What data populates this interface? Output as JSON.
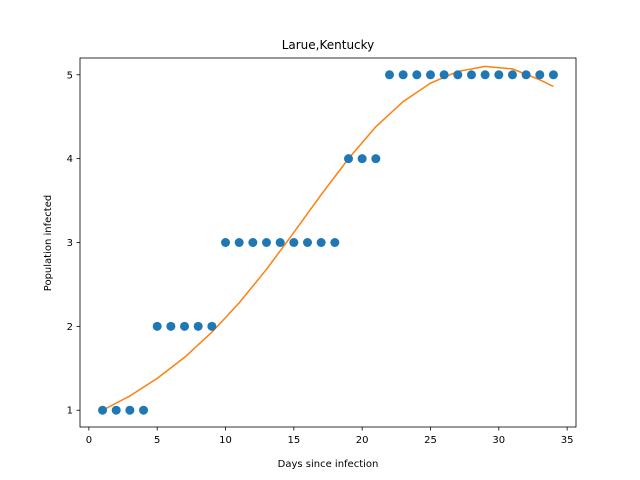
{
  "chart_data": {
    "type": "scatter",
    "title": "Larue,Kentucky",
    "xlabel": "Days since infection",
    "ylabel": "Population infected",
    "xlim": [
      -0.65,
      35.65
    ],
    "ylim": [
      0.8,
      5.2
    ],
    "xticks": [
      0,
      5,
      10,
      15,
      20,
      25,
      30,
      35
    ],
    "yticks": [
      1,
      2,
      3,
      4,
      5
    ],
    "grid": false,
    "colors": {
      "points": "#1f77b4",
      "fit": "#ff7f0e"
    },
    "series": [
      {
        "kind": "scatter",
        "x": [
          1,
          2,
          3,
          4,
          5,
          6,
          7,
          8,
          9,
          10,
          11,
          12,
          13,
          14,
          15,
          16,
          17,
          18,
          19,
          20,
          21,
          22,
          23,
          24,
          25,
          26,
          27,
          28,
          29,
          30,
          31,
          32,
          33,
          34
        ],
        "y": [
          1,
          1,
          1,
          1,
          2,
          2,
          2,
          2,
          2,
          3,
          3,
          3,
          3,
          3,
          3,
          3,
          3,
          3,
          4,
          4,
          4,
          5,
          5,
          5,
          5,
          5,
          5,
          5,
          5,
          5,
          5,
          5,
          5,
          5
        ]
      },
      {
        "kind": "line",
        "x": [
          1,
          3,
          5,
          7,
          9,
          11,
          13,
          15,
          17,
          19,
          21,
          23,
          25,
          27,
          29,
          31,
          33,
          34
        ],
        "y": [
          1.0,
          1.17,
          1.38,
          1.63,
          1.93,
          2.28,
          2.68,
          3.12,
          3.57,
          4.0,
          4.38,
          4.68,
          4.9,
          5.04,
          5.1,
          5.07,
          4.94,
          4.86
        ]
      }
    ]
  }
}
